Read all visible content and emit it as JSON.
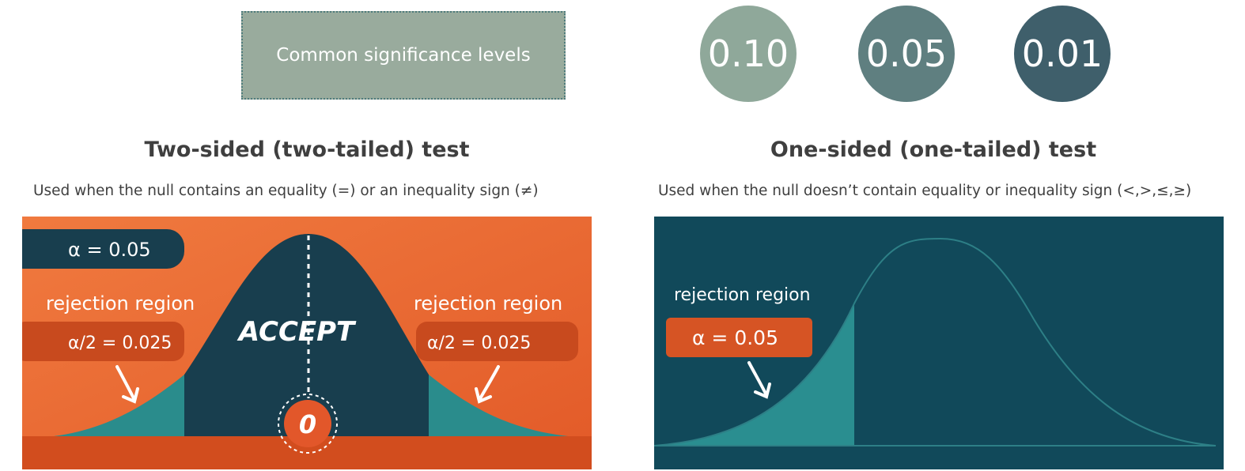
{
  "header": {
    "box_label": "Common significance levels",
    "levels": [
      {
        "value": "0.10",
        "color": "#8fa89a"
      },
      {
        "value": "0.05",
        "color": "#5f7f80"
      },
      {
        "value": "0.01",
        "color": "#3f5f6b"
      }
    ]
  },
  "two_sided": {
    "title": "Two-sided (two-tailed) test",
    "subtitle": "Used when the null contains an equality (=) or an inequality sign (≠)",
    "alpha_label": "α = 0.05",
    "left_rejection_label": "rejection region",
    "left_alpha_half": "α/2 = 0.025",
    "right_rejection_label": "rejection region",
    "right_alpha_half": "α/2 = 0.025",
    "accept_label": "ACCEPT",
    "center_value": "0",
    "colors": {
      "background": "#e8622d",
      "curve": "#183e4e",
      "tail": "#2a8c8c",
      "label": "#c84a1e"
    }
  },
  "one_sided": {
    "title": "One-sided (one-tailed) test",
    "subtitle": "Used when the null doesn’t contain equality or inequality sign (<,>,≤,≥)",
    "rejection_label": "rejection region",
    "alpha_label": "α = 0.05",
    "colors": {
      "background": "#11495a",
      "tail": "#2a8e90",
      "label": "#d65424"
    }
  }
}
